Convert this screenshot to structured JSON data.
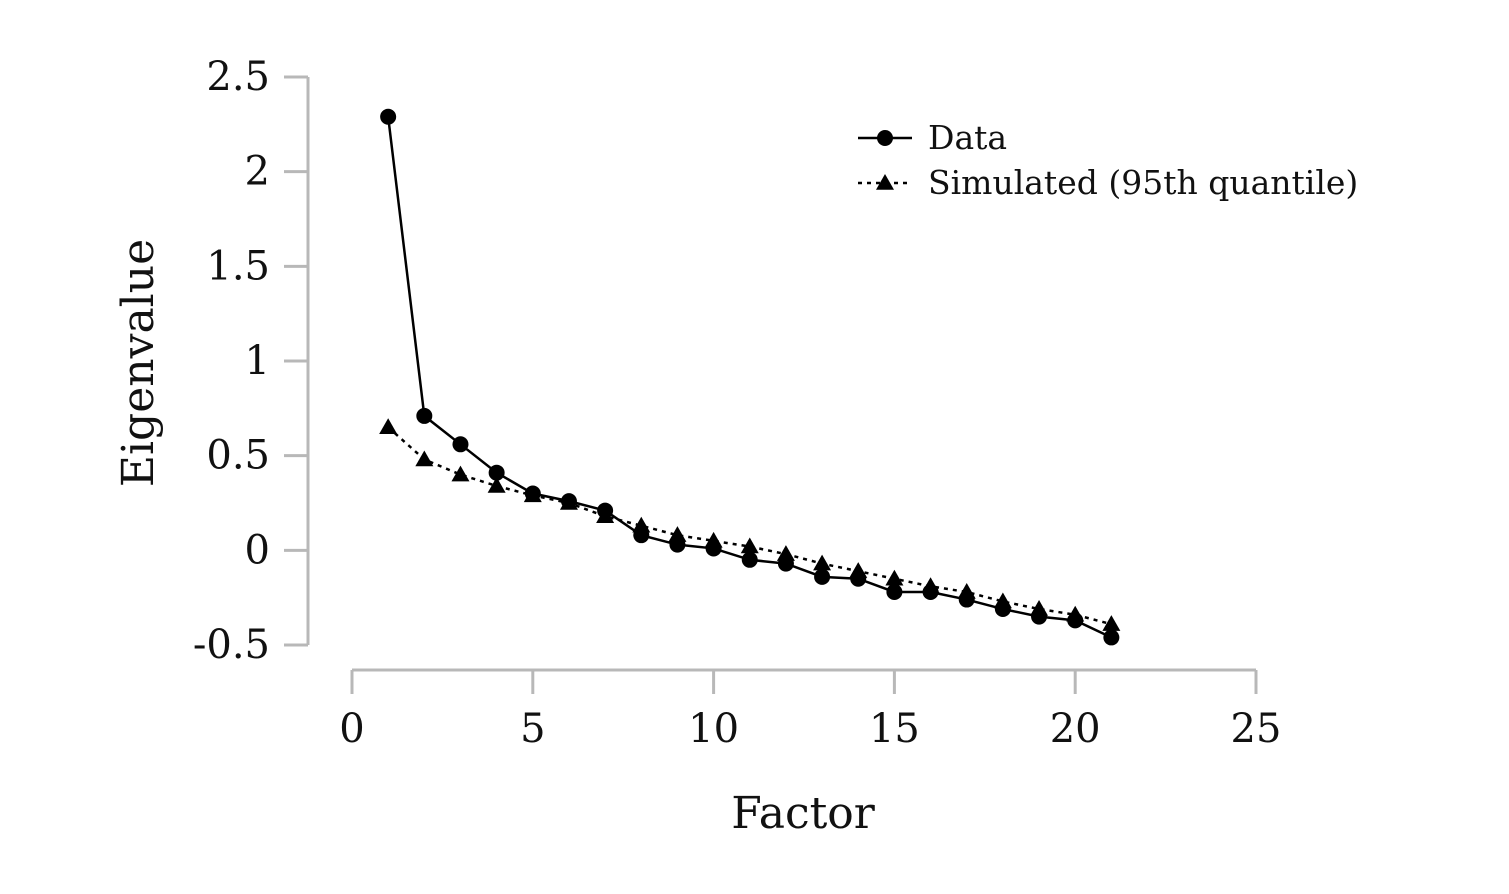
{
  "chart_data": {
    "type": "line",
    "title": "",
    "xlabel": "Factor",
    "ylabel": "Eigenvalue",
    "xlim": [
      0,
      25
    ],
    "ylim": [
      -0.5,
      2.5
    ],
    "xticks": [
      0,
      5,
      10,
      15,
      20,
      25
    ],
    "xtick_labels": [
      "0",
      "5",
      "10",
      "15",
      "20",
      "25"
    ],
    "yticks": [
      -0.5,
      0,
      0.5,
      1,
      1.5,
      2,
      2.5
    ],
    "ytick_labels": [
      "-0.5",
      "0",
      "0.5",
      "1",
      "1.5",
      "2",
      "2.5"
    ],
    "grid": false,
    "legend_position": "top-right",
    "x": [
      1,
      2,
      3,
      4,
      5,
      6,
      7,
      8,
      9,
      10,
      11,
      12,
      13,
      14,
      15,
      16,
      17,
      18,
      19,
      20,
      21
    ],
    "series": [
      {
        "name": "Data",
        "marker": "circle",
        "line_style": "solid",
        "color": "#000000",
        "values": [
          2.29,
          0.71,
          0.56,
          0.41,
          0.3,
          0.26,
          0.21,
          0.08,
          0.03,
          0.01,
          -0.05,
          -0.07,
          -0.14,
          -0.15,
          -0.22,
          -0.22,
          -0.26,
          -0.31,
          -0.35,
          -0.37,
          -0.46
        ]
      },
      {
        "name": "Simulated (95th quantile)",
        "marker": "triangle",
        "line_style": "dotted",
        "color": "#000000",
        "values": [
          0.65,
          0.48,
          0.4,
          0.34,
          0.29,
          0.25,
          0.18,
          0.13,
          0.08,
          0.05,
          0.02,
          -0.02,
          -0.07,
          -0.11,
          -0.15,
          -0.19,
          -0.22,
          -0.27,
          -0.31,
          -0.34,
          -0.39
        ]
      }
    ]
  }
}
